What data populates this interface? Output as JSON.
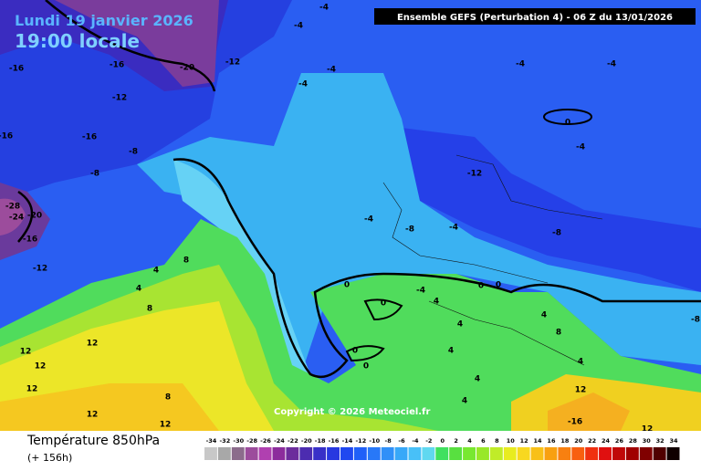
{
  "header": {
    "date": "Lundi 19 janvier 2026",
    "time": "19:00 locale",
    "model": "Ensemble GEFS  (Perturbation 4)  -  06 Z du 13/01/2026"
  },
  "copyright": "Copyright © 2026 Meteociel.fr",
  "footer": {
    "title": "Température 850hPa",
    "lead": "(+ 156h)"
  },
  "scale": {
    "labels": [
      -34,
      -32,
      -30,
      -28,
      -26,
      -24,
      -22,
      -20,
      -18,
      -16,
      -14,
      -12,
      -10,
      -8,
      -6,
      -4,
      -2,
      0,
      2,
      4,
      6,
      8,
      10,
      12,
      14,
      16,
      18,
      20,
      22,
      24,
      26,
      28,
      30,
      32,
      34
    ],
    "colors": [
      "#c8c8c8",
      "#a8a8a8",
      "#8c6c8c",
      "#9c4c9c",
      "#b040b0",
      "#8c2c9c",
      "#6c2c9c",
      "#4c2cb0",
      "#3830c8",
      "#2838e0",
      "#2048f0",
      "#2060f8",
      "#2878f8",
      "#3090f8",
      "#38a8f8",
      "#48c0f8",
      "#60d8f0",
      "#40e060",
      "#58e040",
      "#78e830",
      "#98e828",
      "#c0ec28",
      "#e8ec20",
      "#f8d820",
      "#f8c018",
      "#f8a010",
      "#f88010",
      "#f86010",
      "#f03010",
      "#e01010",
      "#c00808",
      "#a00000",
      "#800000",
      "#500000",
      "#100000"
    ]
  },
  "contour_labels": [
    -4,
    -4,
    -12,
    -20,
    -16,
    -16,
    -4,
    -4,
    -4,
    -4,
    -12,
    -16,
    -16,
    -8,
    -8,
    0,
    -4,
    -12,
    -28,
    -24,
    -20,
    -16,
    -12,
    -4,
    -8,
    -4,
    -8,
    4,
    8,
    4,
    8,
    0,
    0,
    -4,
    0,
    0,
    4,
    4,
    4,
    8,
    12,
    12,
    12,
    12,
    12,
    8,
    0,
    0,
    4,
    4,
    4,
    4,
    12,
    -16,
    12,
    12,
    -8
  ]
}
